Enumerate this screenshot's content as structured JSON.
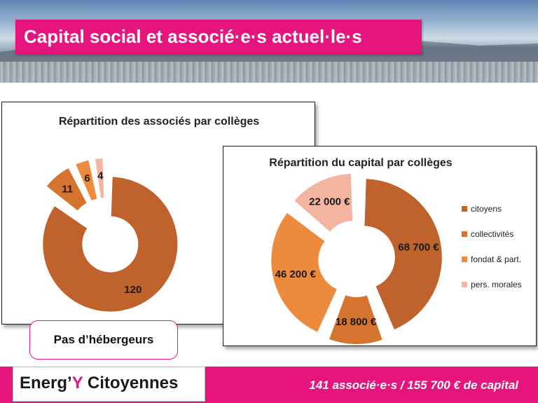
{
  "header": {
    "title": "Capital social et associé·e·s actuel·le·s"
  },
  "colors": {
    "brand_pink": "#e6157d",
    "citoyens": "#c0622b",
    "collectivites": "#d4742f",
    "fondat": "#ee8a3c",
    "pers_morales": "#f3b4a0"
  },
  "chart_data": [
    {
      "type": "pie",
      "title": "Répartition des associés par collèges",
      "categories": [
        "citoyens",
        "collectivités",
        "fondat & part.",
        "pers. morales"
      ],
      "values": [
        120,
        11,
        6,
        4
      ],
      "labels": [
        "120",
        "11",
        "6",
        "4"
      ],
      "donut": true,
      "exploded": true
    },
    {
      "type": "pie",
      "title": "Répartition du capital par collèges",
      "categories": [
        "citoyens",
        "collectivités",
        "fondat & part.",
        "pers. morales"
      ],
      "values": [
        68700,
        18800,
        46200,
        22000
      ],
      "labels": [
        "68 700 €",
        "18 800 €",
        "46 200 €",
        "22 000 €"
      ],
      "donut": true,
      "exploded": true,
      "legend_position": "right",
      "legend": [
        "citoyens",
        "collectivités",
        "fondat & part.",
        "pers. morales"
      ]
    }
  ],
  "note": "Pas d’hébergeurs",
  "footer": {
    "logo_prefix": "Energ’",
    "logo_y": "Y",
    "logo_suffix": " Citoyennes",
    "summary": "141 associé·e·s / 155 700 € de capital"
  }
}
